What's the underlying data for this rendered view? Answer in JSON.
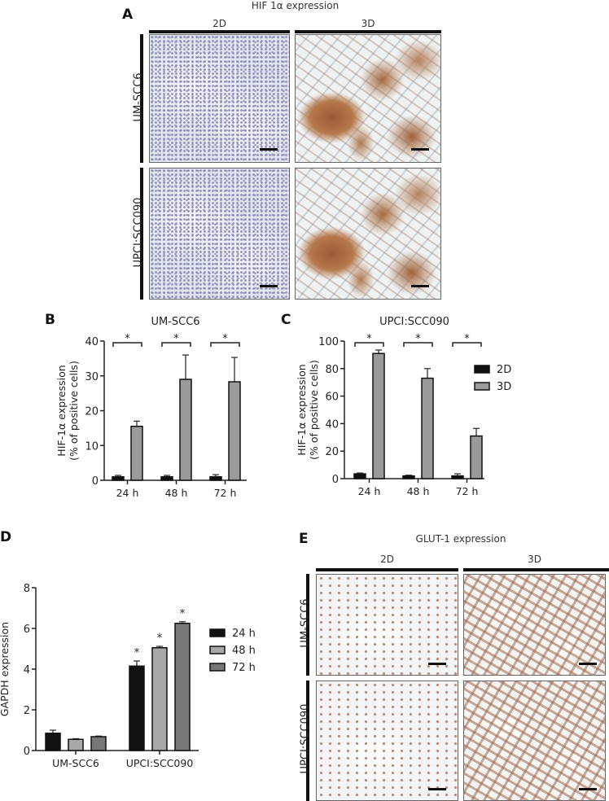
{
  "panelA": {
    "label": "A",
    "title": "HIF 1α expression",
    "col2D": "2D",
    "col3D": "3D",
    "row1": "UM-SCC6",
    "row2": "UPCI:SCC090"
  },
  "panelE": {
    "label": "E",
    "title": "GLUT-1 expression",
    "col2D": "2D",
    "col3D": "3D",
    "row1": "UM-SCC6",
    "row2": "UPCI:SCC090"
  },
  "chart_data": [
    {
      "panel": "B",
      "type": "bar",
      "title": "UM-SCC6",
      "ylabel": "HIF-1α expression\n(% of positive cells)",
      "ylim": [
        0,
        40
      ],
      "yticks": [
        0,
        10,
        20,
        30,
        40
      ],
      "categories": [
        "24 h",
        "48 h",
        "72 h"
      ],
      "series": [
        {
          "name": "2D",
          "values": [
            1,
            1,
            1
          ],
          "errors": [
            0.4,
            0.4,
            0.6
          ],
          "color": "#111111"
        },
        {
          "name": "3D",
          "values": [
            15.5,
            29,
            28.3
          ],
          "errors": [
            1.5,
            7,
            7
          ],
          "color": "#9a9a9a"
        }
      ],
      "significance": [
        "*",
        "*",
        "*"
      ]
    },
    {
      "panel": "C",
      "type": "bar",
      "title": "UPCI:SCC090",
      "ylabel": "HIF-1α expression\n(% of positive cells)",
      "ylim": [
        0,
        100
      ],
      "yticks": [
        0,
        20,
        40,
        60,
        80,
        100
      ],
      "categories": [
        "24 h",
        "48 h",
        "72 h"
      ],
      "series": [
        {
          "name": "2D",
          "values": [
            3.5,
            2,
            2
          ],
          "errors": [
            0.6,
            0.5,
            1.5
          ],
          "color": "#111111"
        },
        {
          "name": "3D",
          "values": [
            91,
            73,
            31
          ],
          "errors": [
            2.5,
            7,
            5.5
          ],
          "color": "#9a9a9a"
        }
      ],
      "significance": [
        "*",
        "*",
        "*"
      ],
      "legend": "right"
    },
    {
      "panel": "D",
      "type": "bar",
      "title": "",
      "ylabel": "GAPDH expression",
      "ylim": [
        0,
        8
      ],
      "yticks": [
        0,
        2,
        4,
        6,
        8
      ],
      "categories": [
        "UM-SCC6",
        "UPCI:SCC090"
      ],
      "series": [
        {
          "name": "24 h",
          "values": [
            0.85,
            4.15
          ],
          "errors": [
            0.15,
            0.25
          ],
          "color": "#111111"
        },
        {
          "name": "48 h",
          "values": [
            0.55,
            5.05
          ],
          "errors": [
            0.03,
            0.07
          ],
          "color": "#a8a8a8"
        },
        {
          "name": "72 h",
          "values": [
            0.68,
            6.25
          ],
          "errors": [
            0.03,
            0.08
          ],
          "color": "#777777"
        }
      ],
      "significance_group": "UPCI:SCC090",
      "significance": "*",
      "legend": "right"
    }
  ]
}
